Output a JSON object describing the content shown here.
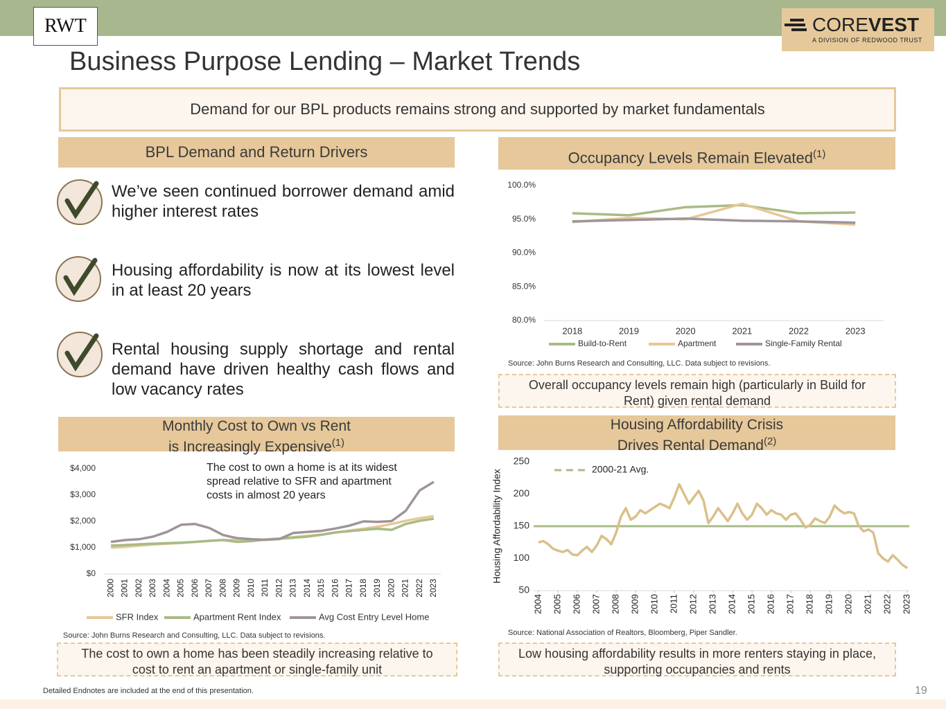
{
  "header": {
    "logo_left": "RWT",
    "logo_right": {
      "light": "CORE",
      "bold": "VEST",
      "tagline": "A DIVISION OF REDWOOD TRUST"
    },
    "title": "Business Purpose Lending – Market Trends"
  },
  "banner": "Demand for our BPL products remains strong and supported by market fundamentals",
  "drivers": {
    "heading": "BPL Demand and Return Drivers",
    "items": [
      "We’ve seen continued borrower demand amid higher interest rates",
      "Housing affordability is now at its lowest level in at least 20 years",
      "Rental housing supply shortage and rental demand have driven healthy cash flows and low vacancy rates"
    ]
  },
  "chart_data": [
    {
      "type": "line",
      "title": "Occupancy Levels Remain Elevated",
      "title_note": "(1)",
      "categories": [
        "2018",
        "2019",
        "2020",
        "2021",
        "2022",
        "2023"
      ],
      "series": [
        {
          "name": "Build-to-Rent",
          "color": "#a8bb85",
          "values": [
            95.9,
            95.6,
            96.8,
            97.1,
            95.9,
            96.0
          ]
        },
        {
          "name": "Apartment",
          "color": "#e8c796",
          "values": [
            94.6,
            95.2,
            95.0,
            97.3,
            94.7,
            94.2
          ]
        },
        {
          "name": "Single-Family Rental",
          "color": "#9e9499",
          "values": [
            94.7,
            94.9,
            95.1,
            94.8,
            94.7,
            94.5
          ]
        }
      ],
      "ylim": [
        80,
        100
      ],
      "yticks": [
        {
          "value": 80,
          "label": "80.0%"
        },
        {
          "value": 85,
          "label": "85.0%"
        },
        {
          "value": 90,
          "label": "90.0%"
        },
        {
          "value": 95,
          "label": "95.0%"
        },
        {
          "value": 100,
          "label": "100.0%"
        }
      ],
      "source": "Source: John Burns Research and Consulting, LLC. Data subject to revisions.",
      "takeaway": "Overall occupancy levels remain high (particularly in Build for Rent) given rental demand"
    },
    {
      "type": "line",
      "title_lines": [
        "Monthly Cost to Own vs Rent",
        "is Increasingly Expensive"
      ],
      "title_note": "(1)",
      "annotation": "The cost to own a home is at its widest spread relative to SFR and apartment costs in almost 20 years",
      "categories": [
        "2000",
        "2001",
        "2002",
        "2003",
        "2004",
        "2005",
        "2006",
        "2007",
        "2008",
        "2009",
        "2010",
        "2011",
        "2012",
        "2013",
        "2014",
        "2015",
        "2016",
        "2017",
        "2018",
        "2019",
        "2020",
        "2021",
        "2022",
        "2023"
      ],
      "series": [
        {
          "name": "SFR Index",
          "color": "#e8c796",
          "values": [
            1000,
            1030,
            1080,
            1120,
            1150,
            1180,
            1220,
            1260,
            1290,
            1300,
            1290,
            1310,
            1350,
            1400,
            1450,
            1500,
            1580,
            1650,
            1720,
            1800,
            1900,
            2020,
            2120,
            2200
          ]
        },
        {
          "name": "Apartment Rent Index",
          "color": "#a8bb85",
          "values": [
            1080,
            1100,
            1130,
            1150,
            1170,
            1190,
            1220,
            1260,
            1290,
            1220,
            1250,
            1310,
            1340,
            1380,
            1420,
            1490,
            1580,
            1630,
            1680,
            1720,
            1680,
            1900,
            2020,
            2100
          ]
        },
        {
          "name": "Avg Cost Entry Level Home",
          "color": "#9e9499",
          "values": [
            1220,
            1290,
            1320,
            1420,
            1600,
            1870,
            1900,
            1750,
            1480,
            1360,
            1320,
            1300,
            1330,
            1560,
            1600,
            1640,
            1730,
            1840,
            2000,
            1980,
            2010,
            2400,
            3180,
            3500
          ]
        }
      ],
      "ylim": [
        0,
        4000
      ],
      "yticks": [
        {
          "value": 0,
          "label": "$0"
        },
        {
          "value": 1000,
          "label": "$1,000"
        },
        {
          "value": 2000,
          "label": "$2,000"
        },
        {
          "value": 3000,
          "label": "$3,000"
        },
        {
          "value": 4000,
          "label": "$4,000"
        }
      ],
      "source": "Source: John Burns Research and Consulting, LLC. Data subject to revisions.",
      "takeaway": "The cost to own a home has been steadily increasing relative to cost to rent an apartment or single-family unit"
    },
    {
      "type": "line",
      "title_lines": [
        "Housing Affordability Crisis",
        "Drives Rental Demand"
      ],
      "title_note": "(2)",
      "ylabel": "Housing Affordability Index",
      "x": [
        2004,
        2004.25,
        2004.5,
        2004.75,
        2005,
        2005.25,
        2005.5,
        2005.75,
        2006,
        2006.25,
        2006.5,
        2006.75,
        2007,
        2007.25,
        2007.5,
        2007.75,
        2008,
        2008.25,
        2008.5,
        2008.75,
        2009,
        2009.25,
        2009.5,
        2009.75,
        2010,
        2010.25,
        2010.5,
        2010.75,
        2011,
        2011.25,
        2011.5,
        2011.75,
        2012,
        2012.25,
        2012.5,
        2012.75,
        2013,
        2013.25,
        2013.5,
        2013.75,
        2014,
        2014.25,
        2014.5,
        2014.75,
        2015,
        2015.25,
        2015.5,
        2015.75,
        2016,
        2016.25,
        2016.5,
        2016.75,
        2017,
        2017.25,
        2017.5,
        2017.75,
        2018,
        2018.25,
        2018.5,
        2018.75,
        2019,
        2019.25,
        2019.5,
        2019.75,
        2020,
        2020.25,
        2020.5,
        2020.75,
        2021,
        2021.25,
        2021.5,
        2021.75,
        2022,
        2022.25,
        2022.5,
        2022.75,
        2023
      ],
      "series": [
        {
          "name": "Housing Affordability Index",
          "color": "#d9c08a",
          "values": [
            125,
            127,
            122,
            115,
            112,
            110,
            113,
            106,
            105,
            112,
            118,
            110,
            120,
            135,
            130,
            122,
            140,
            165,
            178,
            160,
            165,
            175,
            170,
            175,
            180,
            185,
            182,
            178,
            195,
            215,
            200,
            185,
            195,
            205,
            190,
            155,
            165,
            178,
            168,
            158,
            170,
            185,
            170,
            160,
            168,
            185,
            178,
            168,
            175,
            170,
            168,
            160,
            168,
            170,
            160,
            148,
            152,
            162,
            158,
            155,
            165,
            182,
            175,
            170,
            172,
            170,
            150,
            142,
            145,
            140,
            108,
            100,
            95,
            105,
            98,
            90,
            85
          ]
        }
      ],
      "reference_line": {
        "name": "2000-21 Avg.",
        "value": 150,
        "color": "#a8bb85"
      },
      "xlim": [
        2003.75,
        2023.1
      ],
      "xticks": [
        2004,
        2005,
        2006,
        2007,
        2008,
        2009,
        2010,
        2011,
        2012,
        2013,
        2014,
        2015,
        2016,
        2017,
        2018,
        2019,
        2020,
        2021,
        2022,
        2023
      ],
      "ylim": [
        50,
        250
      ],
      "yticks": [
        50,
        100,
        150,
        200,
        250
      ],
      "source": "Source: National Association of Realtors, Bloomberg, Piper Sandler.",
      "takeaway": "Low housing affordability results in more renters staying in place, supporting occupancies and rents"
    }
  ],
  "footer": {
    "note": "Detailed Endnotes are included at the end of this presentation.",
    "page": "19"
  }
}
